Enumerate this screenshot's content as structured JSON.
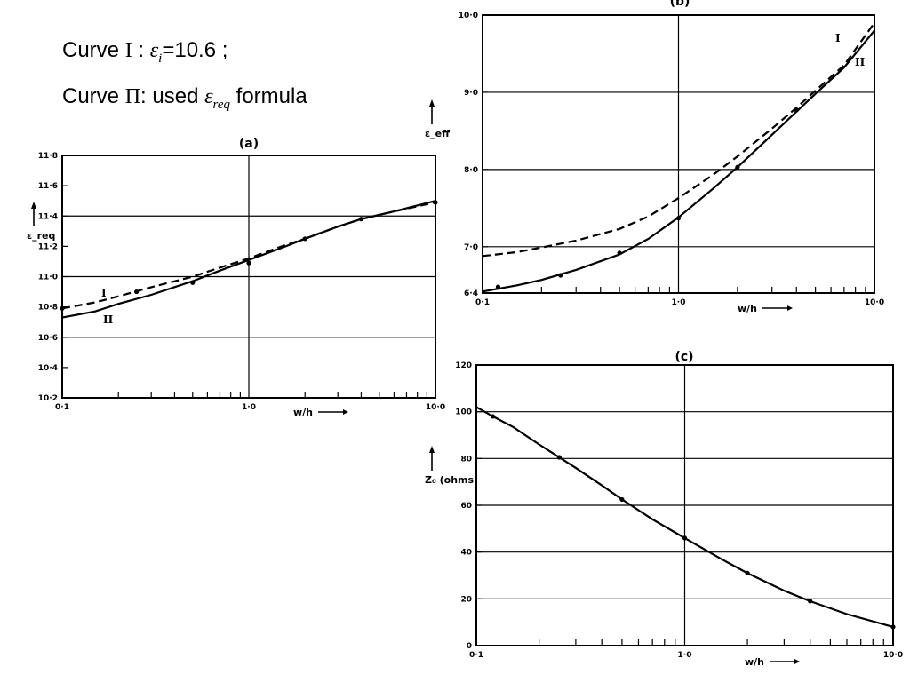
{
  "captions": {
    "curve1": {
      "prefix": "Curve ",
      "numeral": "I",
      "sep": " : ",
      "eps": "ε",
      "sub": "i",
      "value": "=10.6 ;"
    },
    "curve2": {
      "prefix": "Curve ",
      "numeral": "Π",
      "sep": ": used ",
      "eps": "ε",
      "sub": "req",
      "suffix": " formula"
    }
  },
  "chart_data": [
    {
      "type": "line",
      "panel": "a",
      "title": "(a)",
      "xlabel": "w/h",
      "ylabel": "ε_req",
      "xscale": "log",
      "xlim": [
        0.1,
        10.0
      ],
      "ylim": [
        10.2,
        11.8
      ],
      "xticks": [
        "0·1",
        "1·0",
        "10·0"
      ],
      "yticks": [
        "11·8",
        "11·6",
        "11·4",
        "11·2",
        "11·0",
        "10·8",
        "10·6",
        "10·4",
        "10·2"
      ],
      "ytick_values": [
        11.8,
        11.6,
        11.4,
        11.2,
        11.0,
        10.8,
        10.6,
        10.4,
        10.2
      ],
      "grid_y": [
        11.4,
        11.0,
        10.6
      ],
      "grid_x": [
        1.0
      ],
      "series": [
        {
          "name": "I",
          "style": "dashed",
          "x": [
            0.1,
            0.15,
            0.2,
            0.3,
            0.5,
            0.7,
            1.0,
            1.5,
            2.0,
            3.0,
            4.0,
            6.0,
            10.0
          ],
          "y": [
            10.79,
            10.83,
            10.87,
            10.93,
            11.0,
            11.06,
            11.12,
            11.2,
            11.25,
            11.33,
            11.38,
            11.43,
            11.49
          ]
        },
        {
          "name": "II",
          "style": "solid",
          "x": [
            0.1,
            0.15,
            0.2,
            0.3,
            0.5,
            0.7,
            1.0,
            1.5,
            2.0,
            3.0,
            4.0,
            6.0,
            10.0
          ],
          "y": [
            10.73,
            10.77,
            10.82,
            10.88,
            10.97,
            11.04,
            11.11,
            11.19,
            11.25,
            11.33,
            11.38,
            11.43,
            11.5
          ]
        }
      ],
      "points": {
        "x": [
          0.1,
          0.25,
          0.5,
          1.0,
          2.0,
          4.0,
          10.0
        ],
        "y": [
          10.79,
          10.9,
          10.96,
          11.09,
          11.25,
          11.38,
          11.49
        ]
      }
    },
    {
      "type": "line",
      "panel": "b",
      "title": "(b)",
      "xlabel": "w/h",
      "ylabel": "ε_eff",
      "xscale": "log",
      "xlim": [
        0.1,
        10.0
      ],
      "ylim": [
        6.4,
        10.0
      ],
      "xticks": [
        "0·1",
        "1·0",
        "10·0"
      ],
      "yticks": [
        "10·0",
        "9·0",
        "8·0",
        "7·0",
        "6·4"
      ],
      "ytick_values": [
        10.0,
        9.0,
        8.0,
        7.0,
        6.4
      ],
      "grid_y": [
        9.0,
        8.0,
        7.0
      ],
      "grid_x": [
        1.0
      ],
      "series": [
        {
          "name": "I",
          "style": "dashed",
          "x": [
            0.1,
            0.15,
            0.2,
            0.3,
            0.5,
            0.7,
            1.0,
            1.5,
            2.0,
            3.0,
            4.0,
            5.0,
            7.0,
            10.0
          ],
          "y": [
            6.88,
            6.93,
            6.99,
            7.08,
            7.23,
            7.39,
            7.63,
            7.93,
            8.17,
            8.53,
            8.8,
            9.02,
            9.35,
            9.9
          ]
        },
        {
          "name": "II",
          "style": "solid",
          "x": [
            0.1,
            0.15,
            0.2,
            0.3,
            0.5,
            0.7,
            1.0,
            1.5,
            2.0,
            3.0,
            4.0,
            5.0,
            7.0,
            10.0
          ],
          "y": [
            6.42,
            6.5,
            6.57,
            6.7,
            6.9,
            7.1,
            7.38,
            7.75,
            8.03,
            8.45,
            8.75,
            8.98,
            9.32,
            9.8
          ]
        }
      ],
      "curve_labels": [
        "I",
        "II"
      ],
      "points": {
        "x": [
          0.12,
          0.25,
          0.5,
          1.0,
          2.0,
          4.0
        ],
        "y": [
          6.48,
          6.63,
          6.92,
          7.37,
          8.03,
          8.77
        ]
      }
    },
    {
      "type": "line",
      "panel": "c",
      "title": "(c)",
      "xlabel": "w/h",
      "ylabel": "Z₀ (ohms)",
      "xscale": "log",
      "xlim": [
        0.1,
        10.0
      ],
      "ylim": [
        0,
        120
      ],
      "xticks": [
        "0·1",
        "1·0",
        "10·0"
      ],
      "yticks": [
        "120",
        "100",
        "80",
        "60",
        "40",
        "20",
        "0"
      ],
      "ytick_values": [
        120,
        100,
        80,
        60,
        40,
        20,
        0
      ],
      "grid_y": [
        100,
        80,
        60,
        40,
        20
      ],
      "grid_x": [
        1.0
      ],
      "series": [
        {
          "name": "",
          "style": "solid",
          "x": [
            0.1,
            0.12,
            0.15,
            0.2,
            0.25,
            0.3,
            0.4,
            0.5,
            0.7,
            1.0,
            1.5,
            2.0,
            3.0,
            4.0,
            6.0,
            10.0
          ],
          "y": [
            102,
            98,
            93.5,
            86,
            80.5,
            76,
            68.5,
            62.5,
            54,
            46,
            37,
            31,
            23.5,
            19,
            13.5,
            8
          ]
        }
      ],
      "points": {
        "x": [
          0.12,
          0.25,
          0.5,
          1.0,
          2.0,
          4.0,
          10.0
        ],
        "y": [
          98,
          80.5,
          62.5,
          46,
          31,
          19,
          8
        ]
      }
    }
  ]
}
